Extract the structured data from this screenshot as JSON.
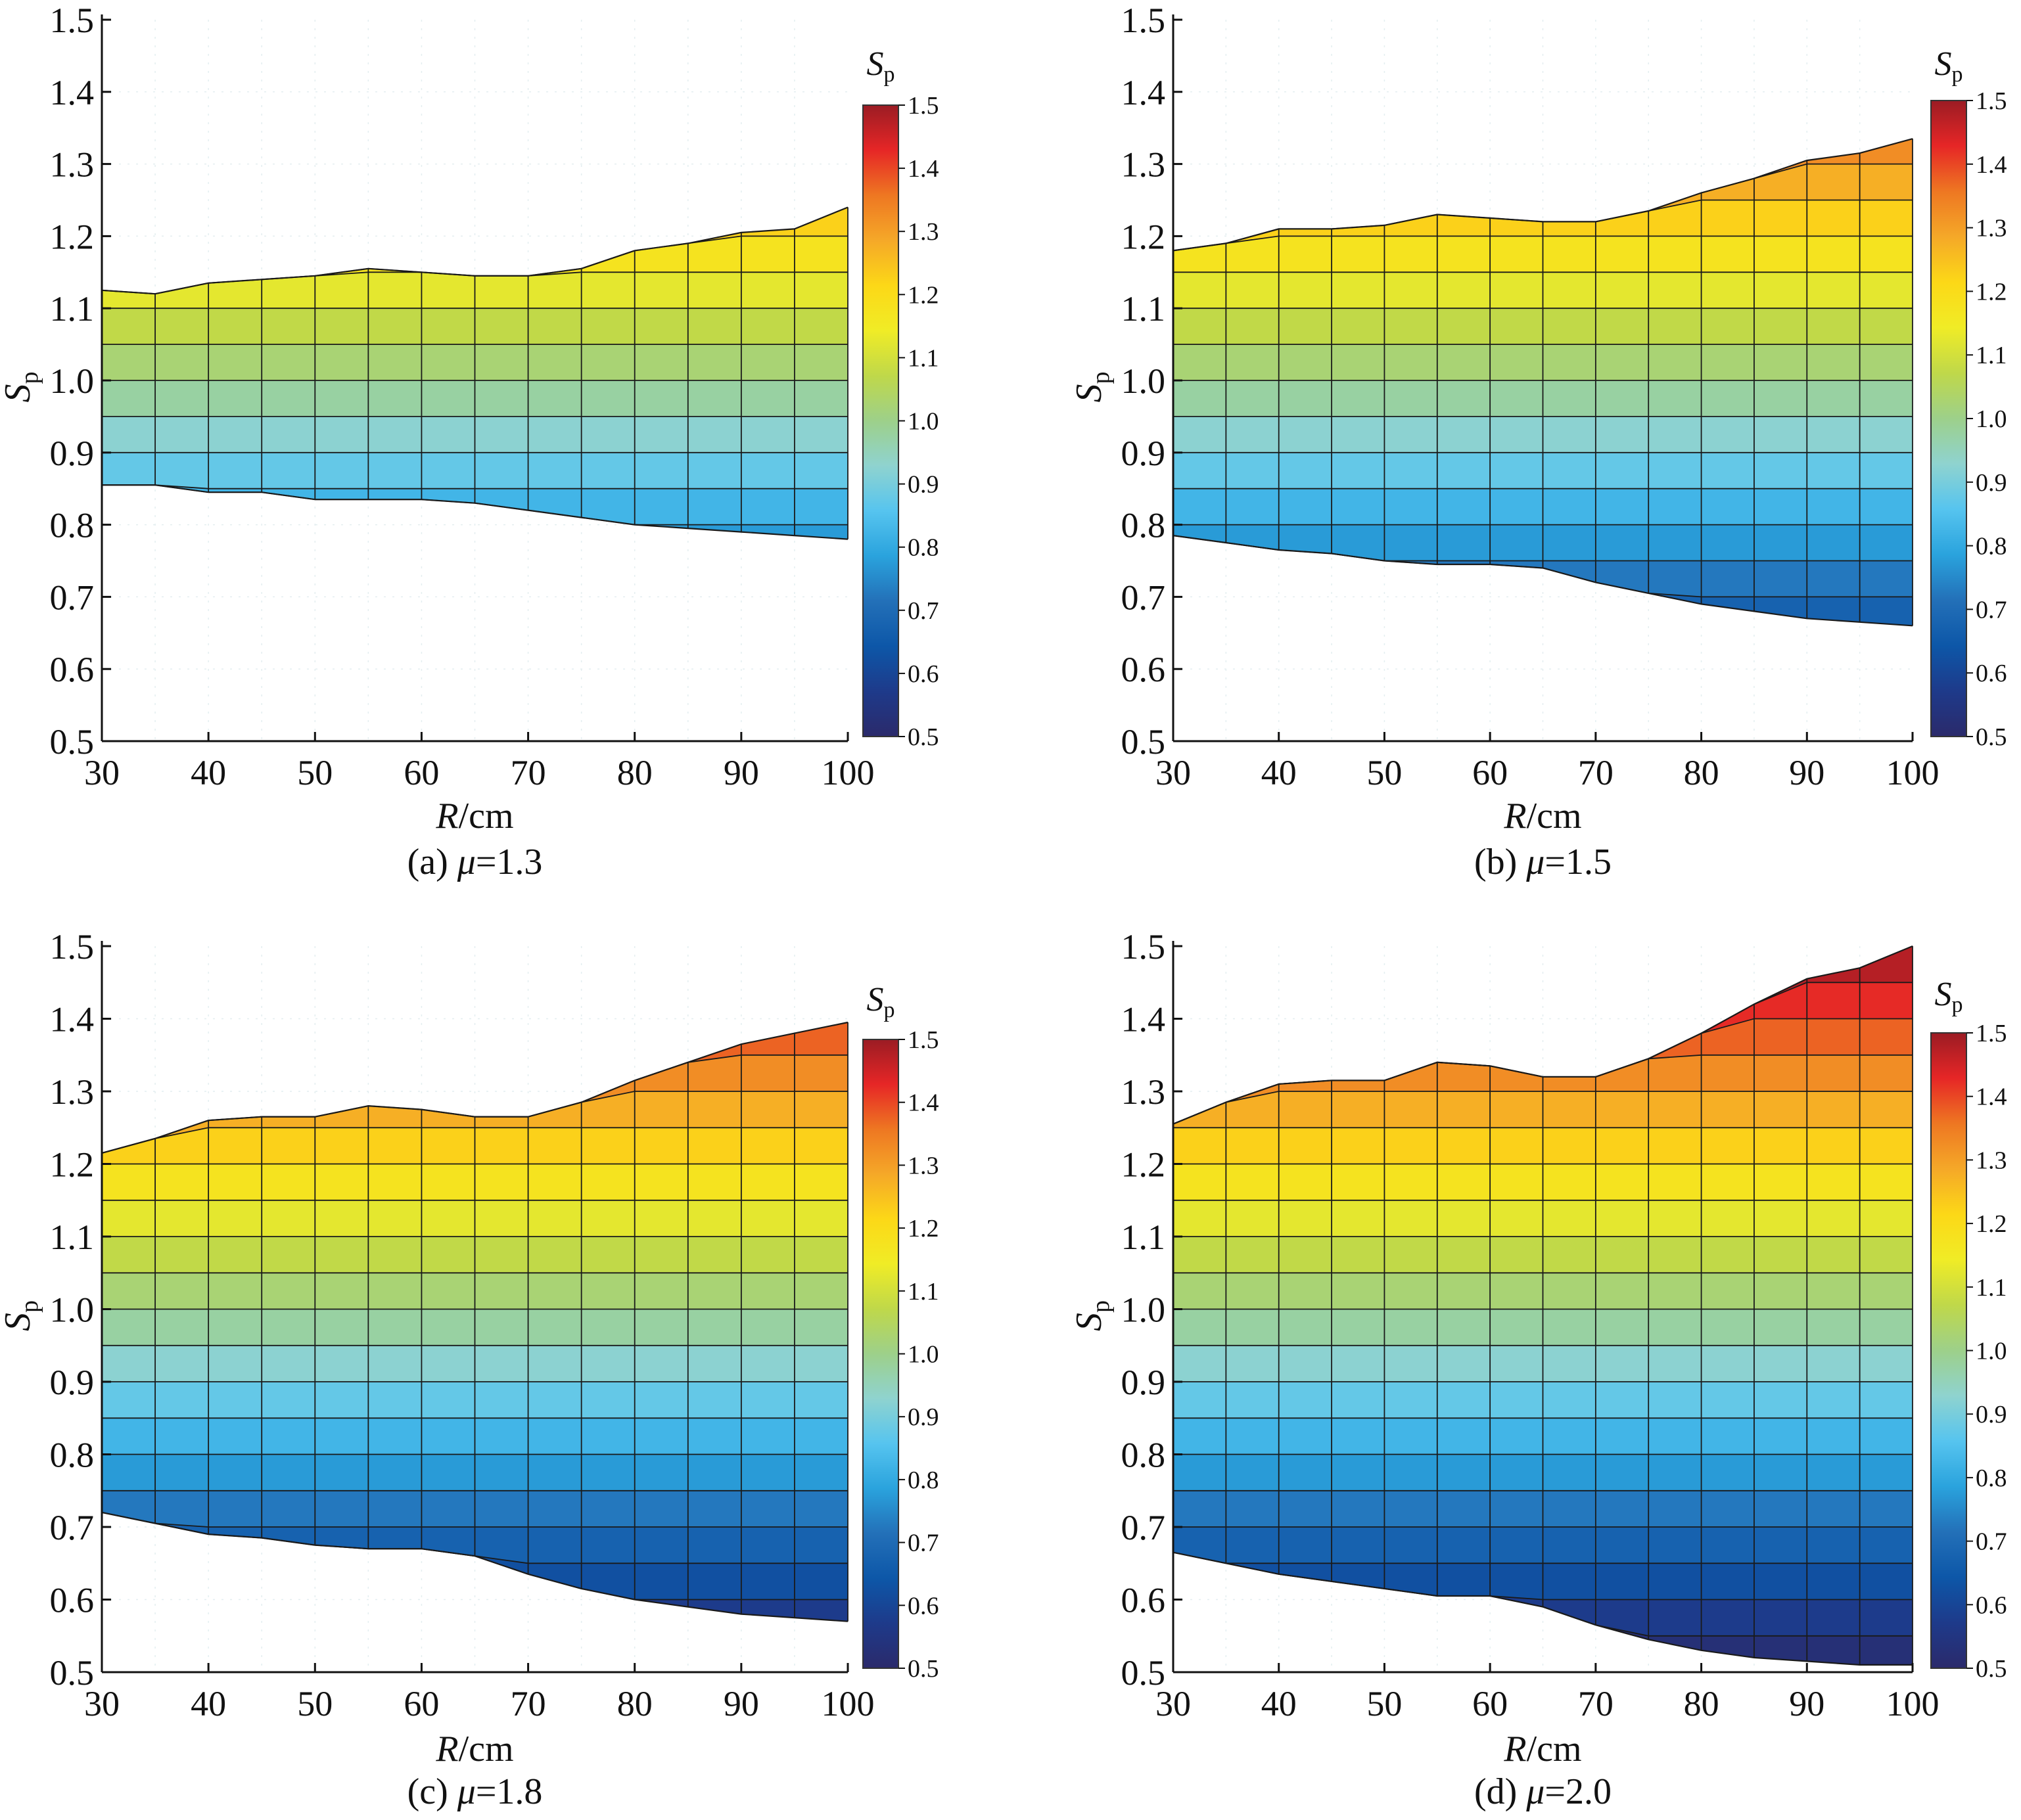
{
  "figure": {
    "x_ticks": [
      "30",
      "40",
      "50",
      "60",
      "70",
      "80",
      "90",
      "100"
    ],
    "y_ticks": [
      "0.5",
      "0.6",
      "0.7",
      "0.8",
      "0.9",
      "1.0",
      "1.1",
      "1.2",
      "1.3",
      "1.4",
      "1.5"
    ],
    "colorbar_ticks": [
      "0.5",
      "0.6",
      "0.7",
      "0.8",
      "0.9",
      "1.0",
      "1.1",
      "1.2",
      "1.3",
      "1.4",
      "1.5"
    ],
    "x_label_var": "R",
    "x_label_unit": "/cm",
    "y_label_var": "S",
    "y_label_sub": "p",
    "colorbar_title_var": "S",
    "colorbar_title_sub": "p",
    "colorbar_range": [
      0.5,
      1.5
    ],
    "colormap": [
      "#2b2a6b",
      "#1e3a8a",
      "#0d57a8",
      "#2370b8",
      "#2aa3dd",
      "#56c4ef",
      "#8fd3cf",
      "#9dd08a",
      "#bfd84a",
      "#f0ec26",
      "#fcd817",
      "#f5a828",
      "#ee7722",
      "#e62626",
      "#9b1c24"
    ]
  },
  "chart_data": [
    {
      "type": "filled-contour",
      "caption": "(a) μ=1.3",
      "caption_prefix": "(a) ",
      "caption_var": "μ",
      "caption_value": "=1.3",
      "xlabel": "R/cm",
      "ylabel": "Sp",
      "xlim": [
        30,
        100
      ],
      "ylim": [
        0.5,
        1.5
      ],
      "x": [
        30,
        35,
        40,
        45,
        50,
        55,
        60,
        65,
        70,
        75,
        80,
        85,
        90,
        95,
        100
      ],
      "top": [
        1.125,
        1.12,
        1.135,
        1.14,
        1.145,
        1.155,
        1.15,
        1.145,
        1.145,
        1.155,
        1.18,
        1.19,
        1.205,
        1.21,
        1.24
      ],
      "bottom": [
        0.855,
        0.855,
        0.845,
        0.845,
        0.835,
        0.835,
        0.835,
        0.83,
        0.82,
        0.81,
        0.8,
        0.795,
        0.79,
        0.785,
        0.78
      ],
      "colorbar_title": "Sp"
    },
    {
      "type": "filled-contour",
      "caption": "(b) μ=1.5",
      "caption_prefix": "(b) ",
      "caption_var": "μ",
      "caption_value": "=1.5",
      "xlabel": "R/cm",
      "ylabel": "Sp",
      "xlim": [
        30,
        100
      ],
      "ylim": [
        0.5,
        1.5
      ],
      "x": [
        30,
        35,
        40,
        45,
        50,
        55,
        60,
        65,
        70,
        75,
        80,
        85,
        90,
        95,
        100
      ],
      "top": [
        1.18,
        1.19,
        1.21,
        1.21,
        1.215,
        1.23,
        1.225,
        1.22,
        1.22,
        1.235,
        1.26,
        1.28,
        1.305,
        1.315,
        1.335
      ],
      "bottom": [
        0.785,
        0.775,
        0.765,
        0.76,
        0.75,
        0.745,
        0.745,
        0.74,
        0.72,
        0.705,
        0.69,
        0.68,
        0.67,
        0.665,
        0.66
      ],
      "colorbar_title": "Sp"
    },
    {
      "type": "filled-contour",
      "caption": "(c) μ=1.8",
      "caption_prefix": "(c) ",
      "caption_var": "μ",
      "caption_value": "=1.8",
      "xlabel": "R/cm",
      "ylabel": "Sp",
      "xlim": [
        30,
        100
      ],
      "ylim": [
        0.5,
        1.5
      ],
      "x": [
        30,
        35,
        40,
        45,
        50,
        55,
        60,
        65,
        70,
        75,
        80,
        85,
        90,
        95,
        100
      ],
      "top": [
        1.215,
        1.235,
        1.26,
        1.265,
        1.265,
        1.28,
        1.275,
        1.265,
        1.265,
        1.285,
        1.315,
        1.34,
        1.365,
        1.38,
        1.395
      ],
      "bottom": [
        0.72,
        0.705,
        0.69,
        0.685,
        0.675,
        0.67,
        0.67,
        0.66,
        0.635,
        0.615,
        0.6,
        0.59,
        0.58,
        0.575,
        0.57
      ],
      "colorbar_title": "Sp"
    },
    {
      "type": "filled-contour",
      "caption": "(d) μ=2.0",
      "caption_prefix": "(d) ",
      "caption_var": "μ",
      "caption_value": "=2.0",
      "xlabel": "R/cm",
      "ylabel": "Sp",
      "xlim": [
        30,
        100
      ],
      "ylim": [
        0.5,
        1.5
      ],
      "x": [
        30,
        35,
        40,
        45,
        50,
        55,
        60,
        65,
        70,
        75,
        80,
        85,
        90,
        95,
        100
      ],
      "top": [
        1.255,
        1.285,
        1.31,
        1.315,
        1.315,
        1.34,
        1.335,
        1.32,
        1.32,
        1.345,
        1.38,
        1.42,
        1.455,
        1.47,
        1.5
      ],
      "bottom": [
        0.665,
        0.65,
        0.635,
        0.625,
        0.615,
        0.605,
        0.605,
        0.59,
        0.565,
        0.545,
        0.53,
        0.52,
        0.515,
        0.51,
        0.51
      ],
      "colorbar_title": "Sp"
    }
  ]
}
